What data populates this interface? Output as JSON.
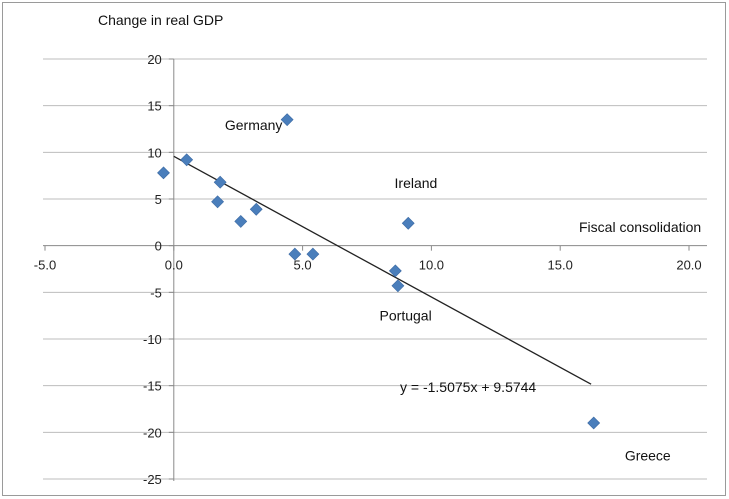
{
  "chart_data": {
    "type": "scatter",
    "title": "",
    "ylabel": "Change in real GDP",
    "xlabel": "Fiscal consolidation",
    "xlim": [
      -5,
      20
    ],
    "ylim": [
      -25,
      20
    ],
    "xticks": [
      -5,
      0,
      5,
      10,
      15,
      20
    ],
    "xtick_labels": [
      "-5.0",
      "0.0",
      "5.0",
      "10.0",
      "15.0",
      "20.0"
    ],
    "yticks": [
      20,
      15,
      10,
      5,
      0,
      -5,
      -10,
      -15,
      -20,
      -25
    ],
    "ytick_labels": [
      "20",
      "15",
      "10",
      "5",
      "0",
      "-5",
      "-10",
      "-15",
      "-20",
      "-25"
    ],
    "grid": "horizontal",
    "marker_color": "#4a7ebb",
    "points": [
      {
        "x": -0.4,
        "y": 7.8
      },
      {
        "x": 0.5,
        "y": 9.2
      },
      {
        "x": 1.7,
        "y": 4.7
      },
      {
        "x": 1.8,
        "y": 6.8
      },
      {
        "x": 2.6,
        "y": 2.6
      },
      {
        "x": 3.2,
        "y": 3.9
      },
      {
        "x": 4.4,
        "y": 13.5
      },
      {
        "x": 4.7,
        "y": -0.9
      },
      {
        "x": 5.4,
        "y": -0.9
      },
      {
        "x": 8.6,
        "y": -2.7
      },
      {
        "x": 8.7,
        "y": -4.3
      },
      {
        "x": 9.1,
        "y": 2.4
      },
      {
        "x": 16.3,
        "y": -19.0
      }
    ],
    "trendline": {
      "slope": -1.5075,
      "intercept": 9.5744,
      "x_range": [
        0,
        16.2
      ],
      "equation_label": "y = -1.5075x + 9.5744"
    },
    "annotations": [
      {
        "text": "Germany",
        "x": 3.1,
        "y": 12.4
      },
      {
        "text": "Ireland",
        "x": 9.4,
        "y": 6.2
      },
      {
        "text": "Portugal",
        "x": 9.0,
        "y": -8.0
      },
      {
        "text": "Greece",
        "x": 18.4,
        "y": -23.0
      }
    ]
  }
}
